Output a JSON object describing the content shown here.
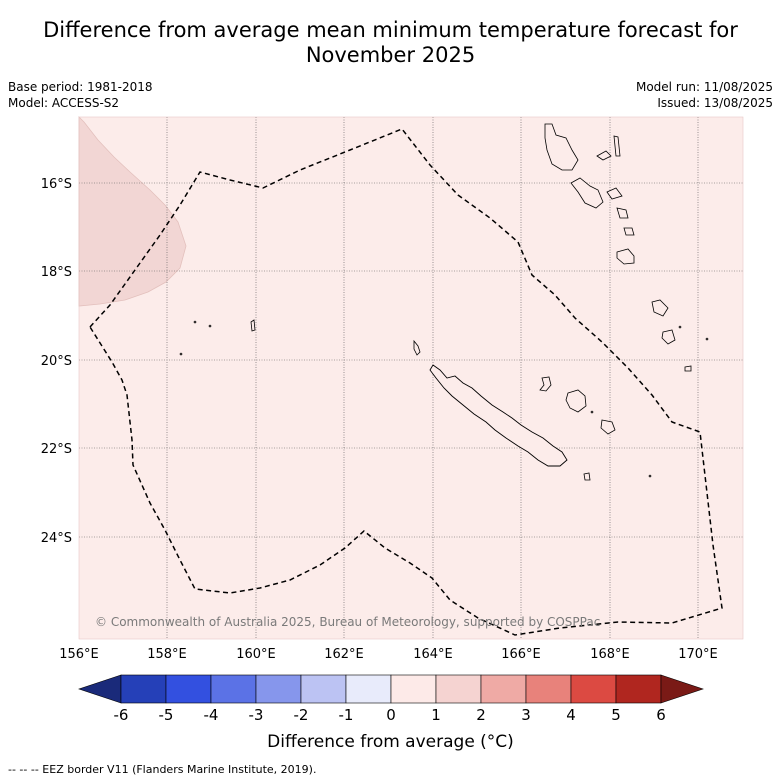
{
  "title_line1": "Difference from average mean minimum temperature forecast for",
  "title_line2": "November 2025",
  "base_period": "Base period: 1981-2018",
  "model": "Model: ACCESS-S2",
  "model_run": "Model run: 11/08/2025",
  "issued": "Issued: 13/08/2025",
  "copyright": "© Commonwealth of Australia 2025, Bureau of Meteorology, supported by COSPPac",
  "lat_labels": [
    "16°S",
    "18°S",
    "20°S",
    "22°S",
    "24°S"
  ],
  "lon_labels": [
    "156°E",
    "158°E",
    "160°E",
    "162°E",
    "164°E",
    "166°E",
    "168°E",
    "170°E"
  ],
  "colorbar": {
    "label": "Difference from average (°C)",
    "ticks": [
      "-6",
      "-5",
      "-4",
      "-3",
      "-2",
      "-1",
      "0",
      "1",
      "2",
      "3",
      "4",
      "5",
      "6"
    ],
    "colors": [
      "#1a2a7a",
      "#2540b8",
      "#3350e0",
      "#5b72e6",
      "#8696ec",
      "#bcc3f3",
      "#e8ebfb",
      "#fdeae8",
      "#f5d3d1",
      "#efaaa5",
      "#e8827b",
      "#dc4a42",
      "#b0261f",
      "#7a1a16"
    ]
  },
  "map_colors": {
    "background": "#fcecea",
    "anomaly_patch": "#f2d6d4",
    "grid": "#555555"
  },
  "footnote": "--  --  -- EEZ border V11 (Flanders Marine Institute, 2019)."
}
